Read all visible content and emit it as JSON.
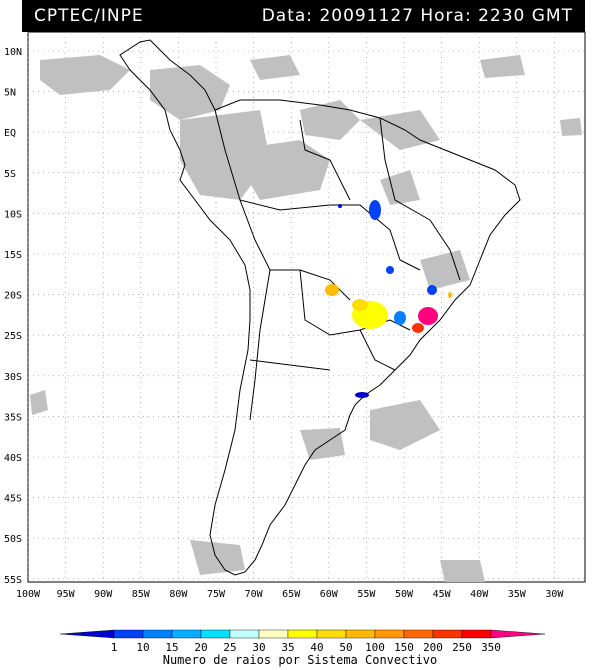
{
  "header": {
    "source": "CPTEC/INPE",
    "datetime": "Data: 20091127 Hora: 2230 GMT"
  },
  "map": {
    "lat_labels": [
      "10N",
      "5N",
      "EQ",
      "5S",
      "10S",
      "15S",
      "20S",
      "25S",
      "30S",
      "35S",
      "40S",
      "45S",
      "50S",
      "55S"
    ],
    "lon_labels": [
      "100W",
      "95W",
      "90W",
      "85W",
      "80W",
      "75W",
      "70W",
      "65W",
      "60W",
      "55W",
      "50W",
      "45W",
      "40W",
      "35W",
      "30W"
    ],
    "colors": {
      "land_outline": "#000000",
      "cloud": "#c0c0c0",
      "grid": "#888888"
    }
  },
  "legend": {
    "caption": "Numero de raios por Sistema Convectivo",
    "labels": [
      "1",
      "10",
      "15",
      "20",
      "25",
      "30",
      "35",
      "40",
      "50",
      "100",
      "150",
      "200",
      "250",
      "350"
    ],
    "colors": [
      "#0000cc",
      "#0040ff",
      "#0080ff",
      "#00b0ff",
      "#00e0ff",
      "#c0ffff",
      "#ffffc0",
      "#ffff00",
      "#ffdd00",
      "#ffbb00",
      "#ff9900",
      "#ff6600",
      "#ff3300",
      "#ff0000",
      "#ff0080"
    ]
  }
}
